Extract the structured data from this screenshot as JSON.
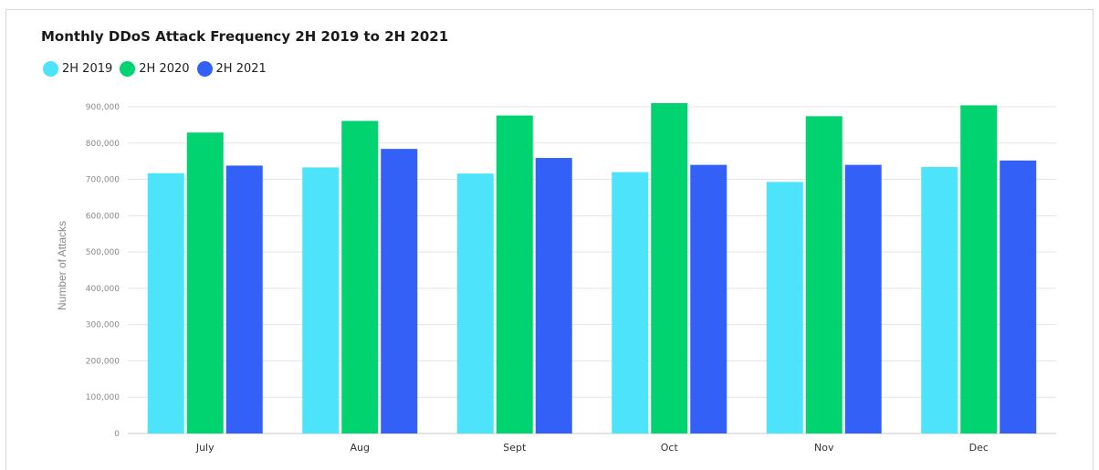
{
  "chart_data": {
    "type": "bar",
    "title": "Monthly DDoS Attack Frequency 2H 2019 to 2H 2021",
    "ylabel": "Number of Attacks",
    "xlabel": "",
    "categories": [
      "July",
      "Aug",
      "Sept",
      "Oct",
      "Nov",
      "Dec"
    ],
    "series": [
      {
        "name": "2H 2019",
        "color": "#4de3fb",
        "values": [
          717000,
          733000,
          716000,
          720000,
          693000,
          734000
        ]
      },
      {
        "name": "2H 2020",
        "color": "#00d36f",
        "values": [
          829000,
          861000,
          876000,
          910000,
          874000,
          904000
        ]
      },
      {
        "name": "2H 2021",
        "color": "#3361f7",
        "values": [
          738000,
          784000,
          759000,
          740000,
          740000,
          752000
        ]
      }
    ],
    "yticks": [
      "0",
      "100,000",
      "200,000",
      "300,000",
      "400,000",
      "500,000",
      "600,000",
      "700,000",
      "800,000",
      "900,000"
    ],
    "ylim": [
      0,
      900000
    ],
    "grid": true,
    "legend_position": "top-left"
  }
}
